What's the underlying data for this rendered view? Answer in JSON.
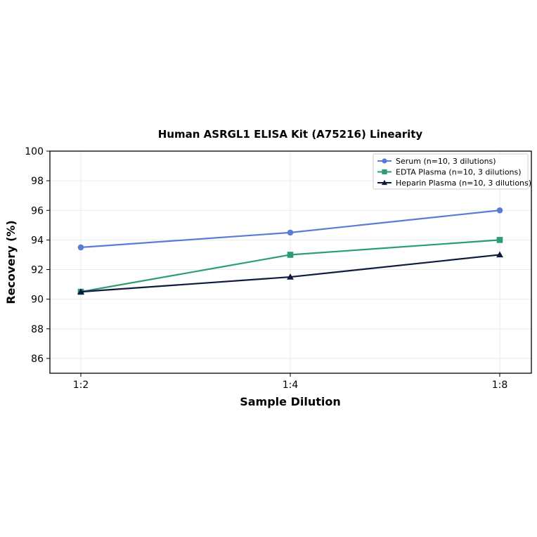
{
  "chart_data": {
    "type": "line",
    "title": "Human ASRGL1 ELISA Kit (A75216) Linearity",
    "xlabel": "Sample Dilution",
    "ylabel": "Recovery (%)",
    "categories": [
      "1:2",
      "1:4",
      "1:8"
    ],
    "ylim": [
      85,
      100
    ],
    "yticks": [
      86,
      88,
      90,
      92,
      94,
      96,
      98,
      100
    ],
    "grid": true,
    "legend_position": "top-right",
    "series": [
      {
        "name": "Serum (n=10, 3 dilutions)",
        "values": [
          93.5,
          94.5,
          96.0
        ],
        "color": "#5B7BD5",
        "marker": "circle"
      },
      {
        "name": "EDTA Plasma (n=10, 3 dilutions)",
        "values": [
          90.5,
          93.0,
          94.0
        ],
        "color": "#2A9D78",
        "marker": "square"
      },
      {
        "name": "Heparin Plasma (n=10, 3 dilutions)",
        "values": [
          90.5,
          91.5,
          93.0
        ],
        "color": "#0F1A3F",
        "marker": "triangle"
      }
    ]
  }
}
